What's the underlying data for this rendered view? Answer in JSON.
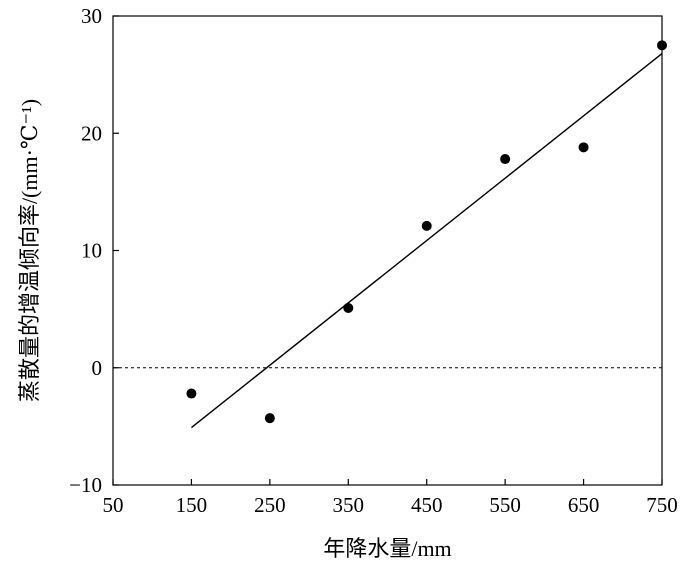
{
  "chart_data": {
    "type": "scatter",
    "title": "",
    "xlabel": "年降水量/mm",
    "ylabel": "蒸散量的增温倾向率/(mm·℃⁻¹)",
    "xlim": [
      50,
      750
    ],
    "ylim": [
      -10,
      30
    ],
    "xticks": [
      50,
      150,
      250,
      350,
      450,
      550,
      650,
      750
    ],
    "yticks": [
      -10,
      0,
      10,
      20,
      30
    ],
    "grid": false,
    "legend": "none",
    "points": [
      {
        "x": 150,
        "y": -2.2
      },
      {
        "x": 250,
        "y": -4.3
      },
      {
        "x": 350,
        "y": 5.1
      },
      {
        "x": 450,
        "y": 12.1
      },
      {
        "x": 550,
        "y": 17.8
      },
      {
        "x": 650,
        "y": 18.8
      },
      {
        "x": 750,
        "y": 27.5
      }
    ],
    "trendline": {
      "x": [
        150,
        750
      ],
      "y": [
        -5.1,
        26.8
      ]
    },
    "reference_line": {
      "y": 0,
      "style": "dashed"
    },
    "colors": {
      "marker": "#000000",
      "line": "#000000",
      "axis": "#000000"
    }
  }
}
